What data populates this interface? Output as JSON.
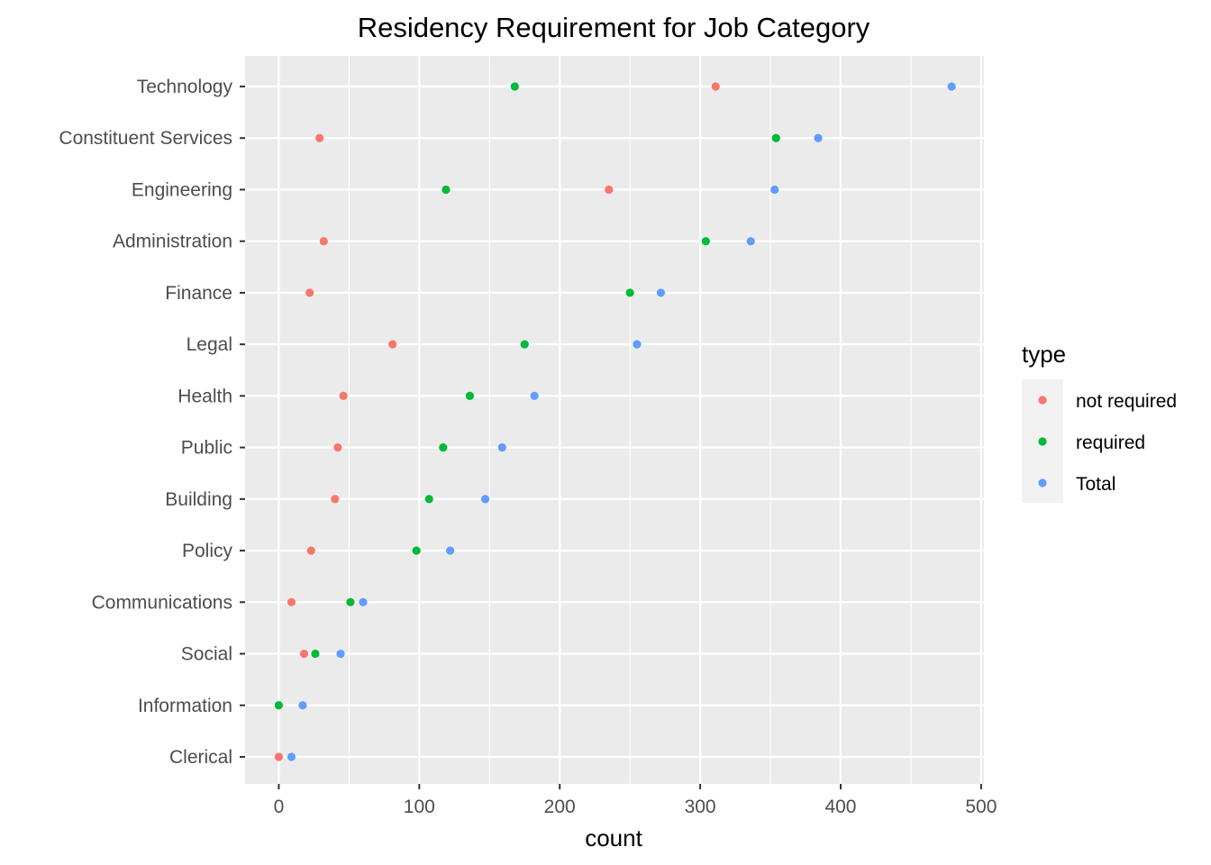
{
  "chart_data": {
    "type": "scatter",
    "title": "Residency Requirement for Job Category",
    "xlabel": "count",
    "ylabel": "",
    "xlim": [
      -24,
      502
    ],
    "xticks": [
      0,
      100,
      200,
      300,
      400,
      500
    ],
    "xtick_labels": [
      "0",
      "100",
      "200",
      "300",
      "400",
      "500"
    ],
    "categories": [
      "Technology",
      "Constituent Services",
      "Engineering",
      "Administration",
      "Finance",
      "Legal",
      "Health",
      "Public",
      "Building",
      "Policy",
      "Communications",
      "Social",
      "Information",
      "Clerical"
    ],
    "series": [
      {
        "name": "not required",
        "color": "#F8766D",
        "values": [
          311,
          29,
          235,
          32,
          22,
          81,
          46,
          42,
          40,
          23,
          9,
          18,
          null,
          0
        ]
      },
      {
        "name": "required",
        "color": "#00BA38",
        "values": [
          168,
          354,
          119,
          304,
          250,
          175,
          136,
          117,
          107,
          98,
          51,
          26,
          0,
          null
        ]
      },
      {
        "name": "Total",
        "color": "#619CFF",
        "values": [
          479,
          384,
          353,
          336,
          272,
          255,
          182,
          159,
          147,
          122,
          60,
          44,
          17,
          9
        ]
      }
    ],
    "grid": true,
    "legend": {
      "title": "type",
      "position": "right",
      "labels": [
        "not required",
        "required",
        "Total"
      ]
    }
  }
}
